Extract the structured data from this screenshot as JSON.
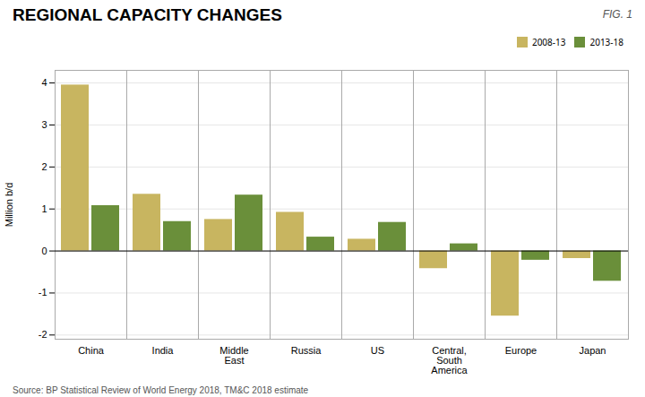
{
  "chart_data": {
    "type": "bar",
    "title": "REGIONAL CAPACITY CHANGES",
    "annotations": [
      "FIG. 1"
    ],
    "caption": "Source: BP Statistical Review of World Energy 2018, TM&C 2018 estimate",
    "ylabel": "Million b/d",
    "categories": [
      "China",
      "India",
      "Middle\nEast",
      "Russia",
      "US",
      "Central,\nSouth\nAmerica",
      "Europe",
      "Japan"
    ],
    "series": [
      {
        "name": "2008-13",
        "color": "#c8b560",
        "values": [
          3.95,
          1.35,
          0.75,
          0.92,
          0.28,
          -0.42,
          -1.55,
          -0.18
        ]
      },
      {
        "name": "2013-18",
        "color": "#6a8f3a",
        "values": [
          1.08,
          0.7,
          1.33,
          0.33,
          0.68,
          0.17,
          -0.22,
          -0.72
        ]
      }
    ],
    "ylim": [
      -2.1,
      4.3
    ],
    "yticks": [
      -2,
      -1,
      0,
      1,
      2,
      3,
      4
    ],
    "grid": true,
    "legend": "upper right"
  }
}
